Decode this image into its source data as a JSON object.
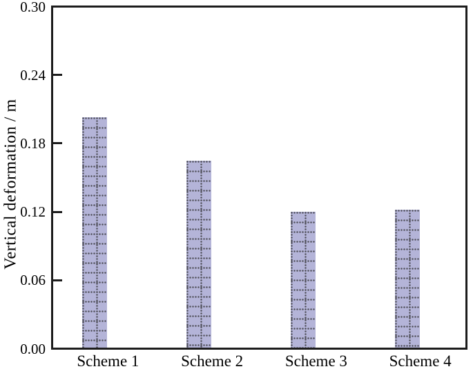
{
  "chart_data": {
    "type": "bar",
    "title": "",
    "xlabel": "",
    "ylabel": "Vertical deformation / m",
    "categories": [
      "Scheme 1",
      "Scheme 2",
      "Scheme 3",
      "Scheme 4"
    ],
    "values": [
      0.203,
      0.165,
      0.12,
      0.122
    ],
    "ylim": [
      0,
      0.3
    ],
    "yticks": [
      0.0,
      0.06,
      0.12,
      0.18,
      0.24,
      0.3
    ],
    "ytick_labels": [
      "0.00",
      "0.06",
      "0.12",
      "0.18",
      "0.24",
      "0.30"
    ],
    "grid": false,
    "legend": "none",
    "frame": "full-box",
    "tick_direction": "in",
    "colors": {
      "bar_fill": "#b4b4d8",
      "bar_pattern_dots": "#50505a",
      "axis": "#1c1c1c",
      "text": "#000000",
      "background": "#ffffff"
    },
    "bar_pattern": "dotted-grid"
  }
}
